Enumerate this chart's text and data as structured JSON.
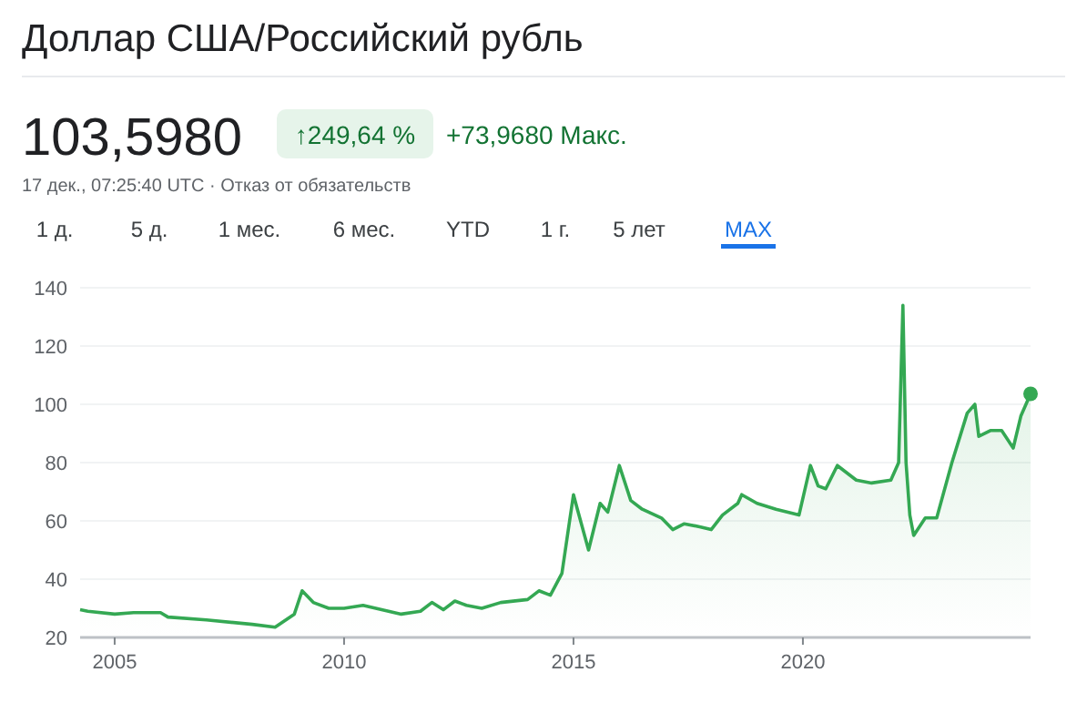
{
  "chart_data": {
    "type": "area",
    "title": "Доллар США/Российский рубль",
    "subtitle": "103,5980",
    "annotations": [
      "↑249,64 %",
      "+73,9680 Макс.",
      "17 дек., 07:25:40 UTC · Отказ от обязательств",
      "1 д.",
      "5 д.",
      "1 мес.",
      "6 мес.",
      "YTD",
      "1 г.",
      "5 лет",
      "MAX"
    ],
    "x": [
      "2004-04",
      "2004-06",
      "2005-01",
      "2005-06",
      "2006-01",
      "2006-03",
      "2007-01",
      "2008-01",
      "2008-07",
      "2008-12",
      "2009-02",
      "2009-05",
      "2009-09",
      "2010-01",
      "2010-06",
      "2011-04",
      "2011-09",
      "2011-12",
      "2012-03",
      "2012-06",
      "2012-09",
      "2013-01",
      "2013-06",
      "2014-01",
      "2014-04",
      "2014-07",
      "2014-10",
      "2014-12",
      "2015-01",
      "2015-02",
      "2015-05",
      "2015-08",
      "2015-10",
      "2016-01",
      "2016-04",
      "2016-07",
      "2016-12",
      "2017-03",
      "2017-06",
      "2017-10",
      "2018-01",
      "2018-04",
      "2018-08",
      "2018-09",
      "2019-01",
      "2019-06",
      "2019-12",
      "2020-03",
      "2020-05",
      "2020-07",
      "2020-10",
      "2021-03",
      "2021-07",
      "2021-12",
      "2022-02",
      "2022-03-07",
      "2022-04",
      "2022-05",
      "2022-06",
      "2022-09",
      "2022-12",
      "2023-04",
      "2023-08",
      "2023-10",
      "2023-11",
      "2024-02",
      "2024-05",
      "2024-08",
      "2024-10",
      "2024-12-17"
    ],
    "series": [
      {
        "color": "#34a853",
        "values": [
          29.5,
          29,
          28,
          28.5,
          28.5,
          27,
          26,
          24.5,
          23.5,
          28,
          36,
          32,
          30,
          30,
          31,
          28,
          29,
          32,
          29.5,
          32.5,
          31,
          30,
          32,
          33,
          36,
          34.5,
          42,
          60,
          69,
          64,
          50,
          66,
          63,
          79,
          67,
          64,
          61,
          57,
          59,
          58,
          57,
          62,
          66,
          69,
          66,
          64,
          62,
          79,
          72,
          71,
          79,
          74,
          73,
          74,
          80,
          134,
          80,
          62,
          55,
          61,
          61,
          80,
          97,
          100,
          89,
          91,
          91,
          85,
          96,
          103.6
        ]
      }
    ],
    "xlim": [
      "2004-04",
      "2024-12-17"
    ],
    "xticks": [
      "2005",
      "2010",
      "2015",
      "2020"
    ],
    "ylim": [
      20,
      140
    ],
    "yticks": [
      20,
      40,
      60,
      80,
      100,
      120,
      140
    ],
    "grid": "y"
  }
}
